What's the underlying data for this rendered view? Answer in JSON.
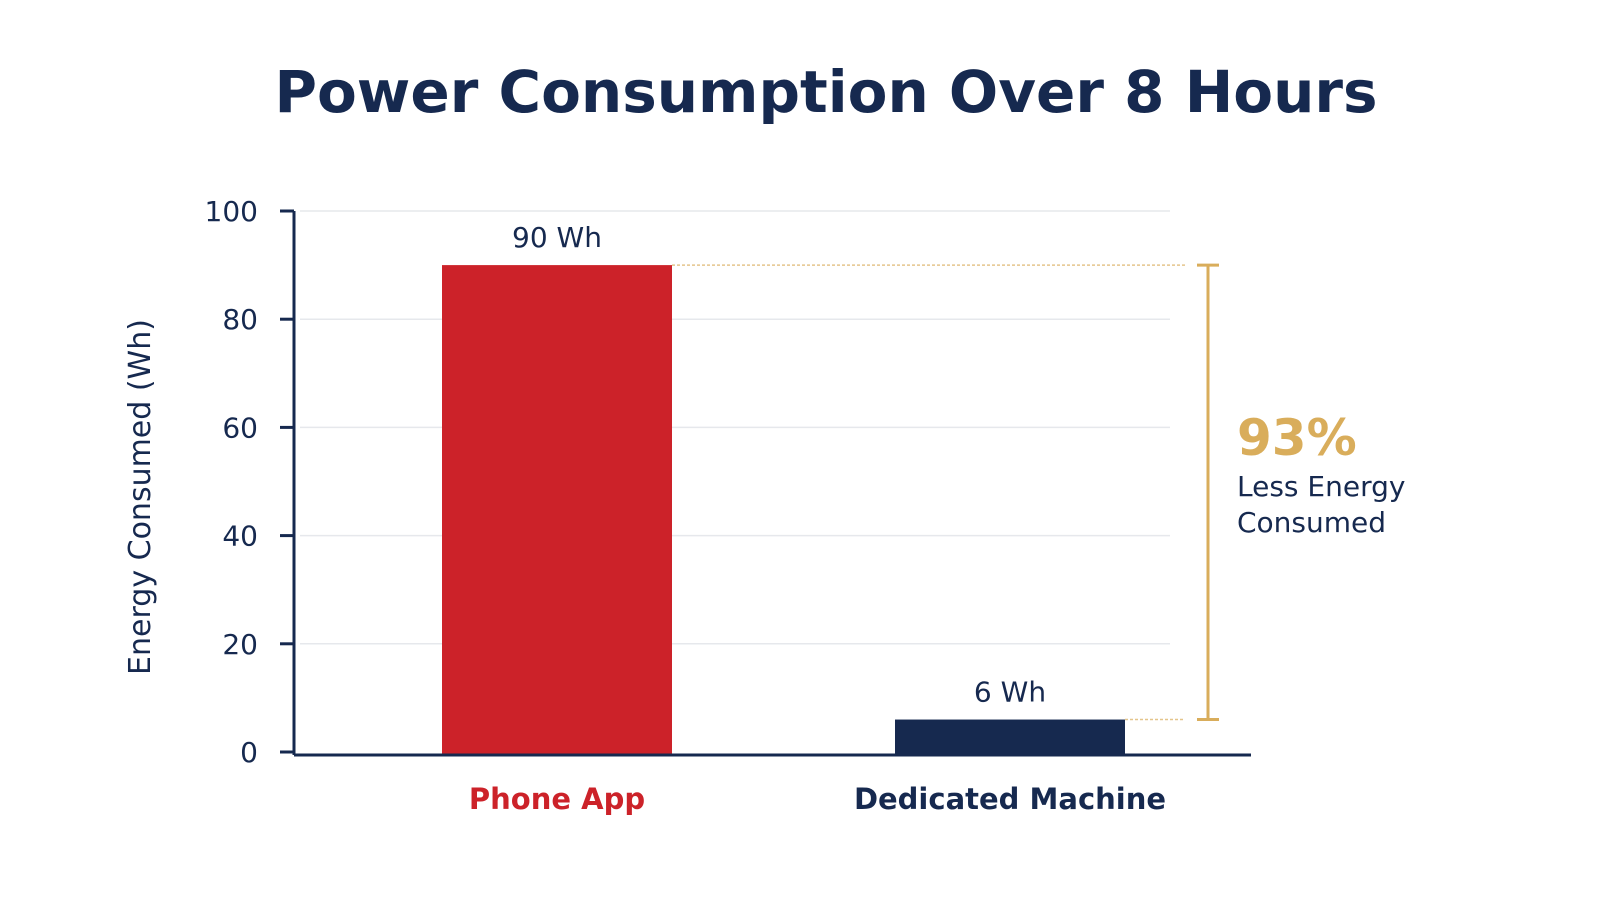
{
  "chart_data": {
    "type": "bar",
    "title": "Power Consumption Over 8 Hours",
    "ylabel": "Energy Consumed (Wh)",
    "xlabel": "",
    "ylim": [
      0,
      100
    ],
    "yticks": [
      0,
      20,
      40,
      60,
      80,
      100
    ],
    "grid": true,
    "categories": [
      "Phone App",
      "Dedicated Machine"
    ],
    "values": [
      90,
      6
    ],
    "value_labels": [
      "90 Wh",
      "6 Wh"
    ],
    "colors": [
      "#cc2229",
      "#16294f"
    ],
    "annotation": {
      "percent": "93%",
      "line1": "Less Energy",
      "line2": "Consumed",
      "color": "#d9ad5b"
    }
  }
}
